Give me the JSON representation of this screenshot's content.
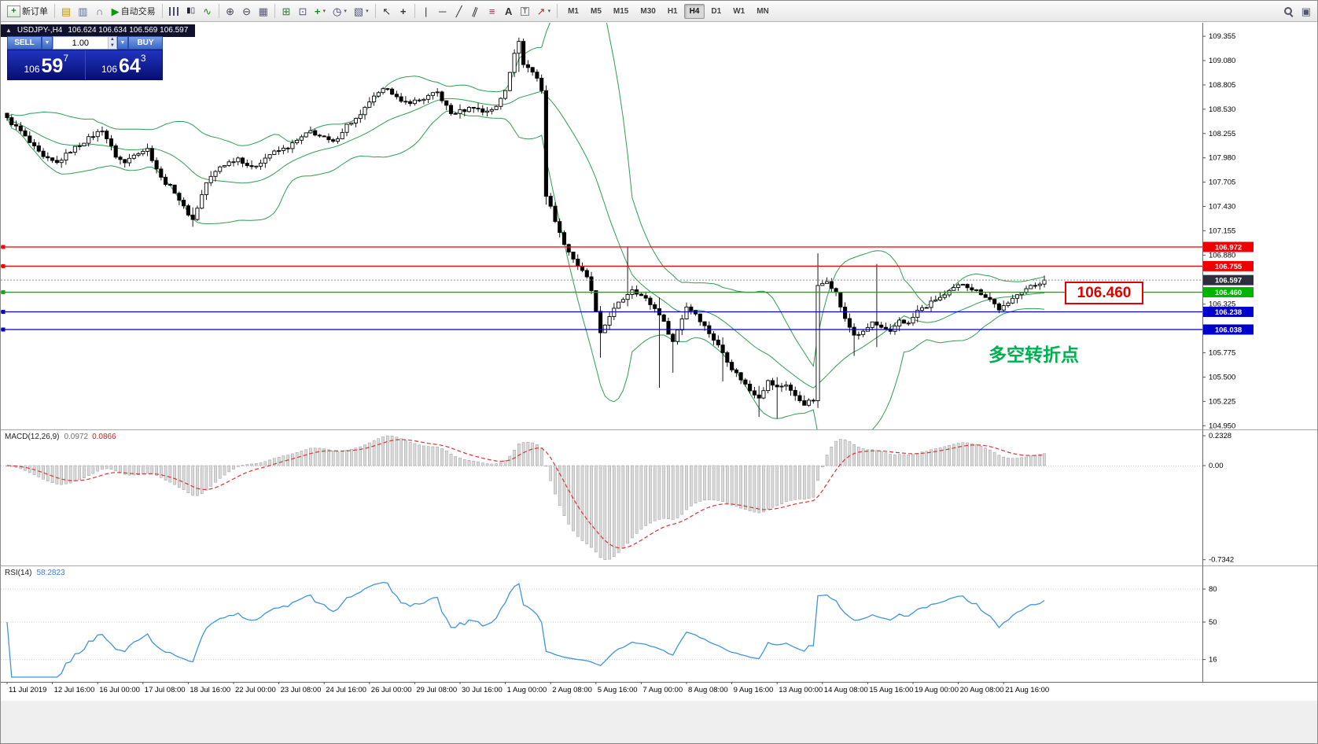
{
  "toolbar": {
    "new_order_label": "新订单",
    "autotrading_label": "自动交易",
    "timeframes": [
      "M1",
      "M5",
      "M15",
      "M30",
      "H1",
      "H4",
      "D1",
      "W1",
      "MN"
    ],
    "active_timeframe": "H4"
  },
  "chart": {
    "collapse_icon": "▲",
    "title": "USDJPY-,H4",
    "ohlc": "106.624 106.634 106.569 106.597",
    "quick_trade": {
      "sell_label": "SELL",
      "buy_label": "BUY",
      "lot_value": "1.00",
      "sell_price_group": "106",
      "sell_price_big": "59",
      "sell_price_sup": "7",
      "buy_price_group": "106",
      "buy_price_big": "64",
      "buy_price_sup": "3"
    },
    "price_axis_ticks": [
      "109.355",
      "109.080",
      "108.805",
      "108.530",
      "108.255",
      "107.980",
      "107.705",
      "107.430",
      "107.155",
      "106.880",
      "106.325",
      "105.775",
      "105.500",
      "105.225",
      "104.950"
    ],
    "levels": [
      {
        "value": 106.972,
        "label": "106.972",
        "color": "#f00000"
      },
      {
        "value": 106.755,
        "label": "106.755",
        "color": "#f00000"
      },
      {
        "value": 106.46,
        "label": "106.460",
        "color": "#00b400"
      },
      {
        "value": 106.238,
        "label": "106.238",
        "color": "#0000cc"
      },
      {
        "value": 106.038,
        "label": "106.038",
        "color": "#0000cc"
      }
    ],
    "current_price": {
      "value": 106.597,
      "label": "106.597"
    },
    "annotations": {
      "price_note": "106.460",
      "trend_note": "多空转折点"
    },
    "time_axis": {
      "step": 10,
      "labels": [
        "11 Jul 2019",
        "12 Jul 16:00",
        "16 Jul 00:00",
        "17 Jul 08:00",
        "18 Jul 16:00",
        "22 Jul 00:00",
        "23 Jul 08:00",
        "24 Jul 16:00",
        "26 Jul 00:00",
        "29 Jul 08:00",
        "30 Jul 16:00",
        "1 Aug 00:00",
        "2 Aug 08:00",
        "5 Aug 16:00",
        "7 Aug 00:00",
        "8 Aug 08:00",
        "9 Aug 16:00",
        "13 Aug 00:00",
        "14 Aug 08:00",
        "15 Aug 16:00",
        "19 Aug 00:00",
        "20 Aug 08:00",
        "21 Aug 16:00"
      ]
    }
  },
  "macd": {
    "name": "MACD(12,26,9)",
    "value_main": "0.0972",
    "value_signal": "0.0866",
    "axis": [
      {
        "v": 0.2328,
        "t": "0.2328"
      },
      {
        "v": 0,
        "t": "0.00"
      },
      {
        "v": -0.7342,
        "t": "-0.7342"
      }
    ]
  },
  "rsi": {
    "name": "RSI(14)",
    "value": "58.2823",
    "axis": [
      {
        "v": 80,
        "t": "80"
      },
      {
        "v": 50,
        "t": "50"
      },
      {
        "v": 16,
        "t": "16"
      }
    ]
  },
  "chart_data": {
    "type": "candlestick",
    "symbol": "USDJPY-",
    "timeframe": "H4",
    "n_candles": 230,
    "last_close": 106.597,
    "jitter": 0.045,
    "wick": 0.06,
    "price_range_visible": [
      104.95,
      109.5
    ],
    "indicators": {
      "bollinger": "Bands(20,2)",
      "macd": "MACD(12,26,9)",
      "rsi": "RSI(14)"
    },
    "close_anchors": [
      [
        0,
        108.42
      ],
      [
        3,
        108.28
      ],
      [
        5,
        108.15
      ],
      [
        8,
        107.98
      ],
      [
        11,
        107.92
      ],
      [
        14,
        108.06
      ],
      [
        18,
        108.2
      ],
      [
        21,
        108.3
      ],
      [
        24,
        108.0
      ],
      [
        26,
        107.92
      ],
      [
        28,
        108.03
      ],
      [
        31,
        108.08
      ],
      [
        34,
        107.75
      ],
      [
        37,
        107.6
      ],
      [
        39,
        107.42
      ],
      [
        41,
        107.28
      ],
      [
        44,
        107.7
      ],
      [
        47,
        107.88
      ],
      [
        51,
        107.98
      ],
      [
        54,
        107.86
      ],
      [
        58,
        108.02
      ],
      [
        62,
        108.1
      ],
      [
        67,
        108.28
      ],
      [
        70,
        108.2
      ],
      [
        72,
        108.15
      ],
      [
        75,
        108.35
      ],
      [
        78,
        108.45
      ],
      [
        80,
        108.62
      ],
      [
        84,
        108.78
      ],
      [
        87,
        108.6
      ],
      [
        91,
        108.63
      ],
      [
        95,
        108.72
      ],
      [
        98,
        108.48
      ],
      [
        101,
        108.52
      ],
      [
        103,
        108.56
      ],
      [
        105,
        108.5
      ],
      [
        108,
        108.55
      ],
      [
        110,
        108.75
      ],
      [
        112,
        109.18
      ],
      [
        113,
        109.28
      ],
      [
        114,
        109.05
      ],
      [
        116,
        108.95
      ],
      [
        117,
        108.88
      ],
      [
        118,
        108.75
      ],
      [
        119,
        107.55
      ],
      [
        120,
        107.42
      ],
      [
        121,
        107.28
      ],
      [
        122,
        107.12
      ],
      [
        124,
        106.92
      ],
      [
        126,
        106.76
      ],
      [
        128,
        106.62
      ],
      [
        129,
        106.48
      ],
      [
        131,
        105.98
      ],
      [
        133,
        106.2
      ],
      [
        135,
        106.33
      ],
      [
        138,
        106.5
      ],
      [
        140,
        106.42
      ],
      [
        141,
        106.38
      ],
      [
        144,
        106.22
      ],
      [
        147,
        105.9
      ],
      [
        150,
        106.3
      ],
      [
        152,
        106.22
      ],
      [
        155,
        106.0
      ],
      [
        158,
        105.78
      ],
      [
        160,
        105.6
      ],
      [
        162,
        105.48
      ],
      [
        164,
        105.35
      ],
      [
        166,
        105.28
      ],
      [
        168,
        105.45
      ],
      [
        170,
        105.38
      ],
      [
        172,
        105.42
      ],
      [
        174,
        105.28
      ],
      [
        176,
        105.2
      ],
      [
        178,
        105.24
      ],
      [
        179,
        106.52
      ],
      [
        181,
        106.6
      ],
      [
        183,
        106.45
      ],
      [
        185,
        106.15
      ],
      [
        187,
        105.98
      ],
      [
        189,
        106.0
      ],
      [
        191,
        106.12
      ],
      [
        193,
        106.05
      ],
      [
        195,
        106.0
      ],
      [
        197,
        106.15
      ],
      [
        199,
        106.1
      ],
      [
        201,
        106.25
      ],
      [
        203,
        106.3
      ],
      [
        205,
        106.38
      ],
      [
        207,
        106.42
      ],
      [
        209,
        106.5
      ],
      [
        211,
        106.56
      ],
      [
        213,
        106.5
      ],
      [
        215,
        106.45
      ],
      [
        217,
        106.38
      ],
      [
        219,
        106.27
      ],
      [
        221,
        106.32
      ],
      [
        223,
        106.45
      ],
      [
        225,
        106.5
      ],
      [
        227,
        106.54
      ],
      [
        229,
        106.597
      ]
    ],
    "wick_overrides": [
      [
        41,
        107.42,
        107.2
      ],
      [
        113,
        109.34,
        108.95
      ],
      [
        119,
        108.8,
        107.45
      ],
      [
        131,
        106.1,
        105.72
      ],
      [
        137,
        106.97,
        106.3
      ],
      [
        144,
        106.4,
        105.38
      ],
      [
        147,
        106.0,
        105.55
      ],
      [
        158,
        105.95,
        105.45
      ],
      [
        166,
        105.4,
        105.05
      ],
      [
        170,
        105.5,
        105.03
      ],
      [
        179,
        106.9,
        105.15
      ],
      [
        187,
        106.1,
        105.74
      ],
      [
        192,
        106.78,
        105.84
      ]
    ]
  }
}
